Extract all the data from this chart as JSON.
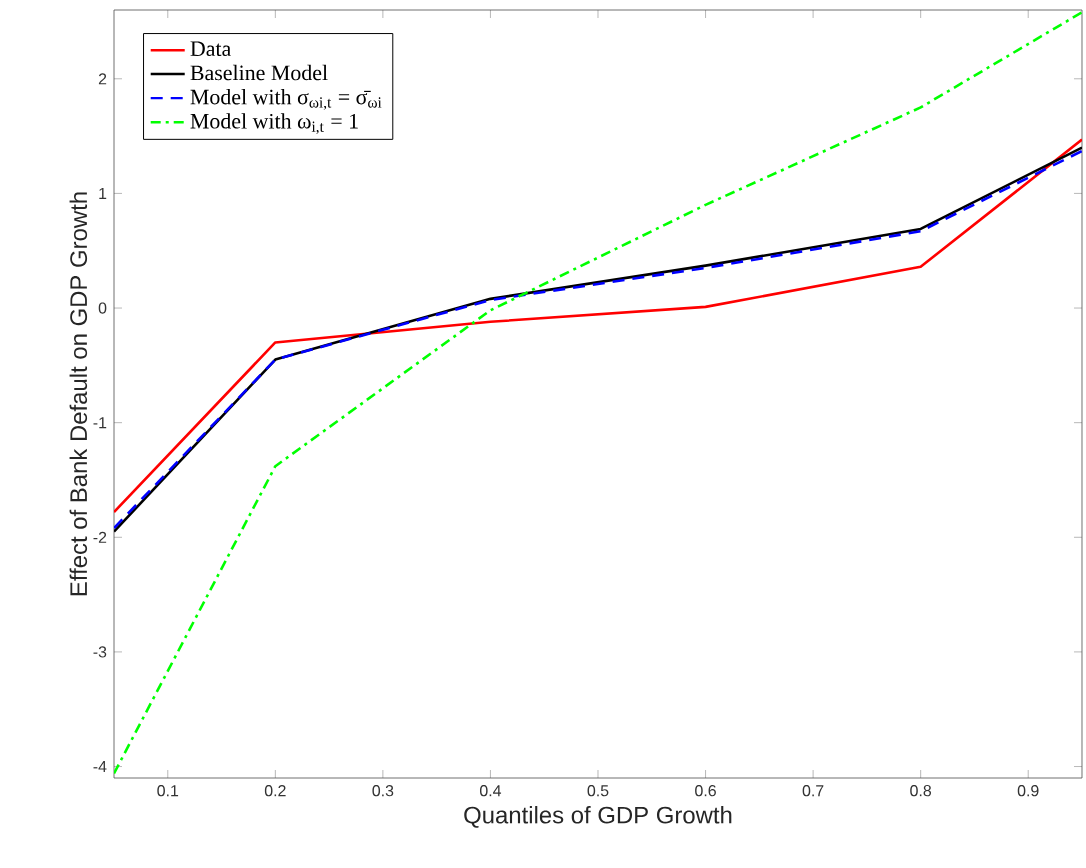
{
  "chart_data": {
    "type": "line",
    "xlabel": "Quantiles of GDP Growth",
    "ylabel": "Effect of Bank Default on GDP Growth",
    "x": [
      0.05,
      0.2,
      0.4,
      0.6,
      0.8,
      0.95
    ],
    "series": [
      {
        "name": "Data",
        "color": "#ff0000",
        "line_style": "solid",
        "values": [
          -1.78,
          -0.3,
          -0.12,
          0.01,
          0.36,
          1.47
        ]
      },
      {
        "name": "Baseline Model",
        "color": "#000000",
        "line_style": "solid",
        "values": [
          -1.95,
          -0.45,
          0.08,
          0.37,
          0.69,
          1.4
        ]
      },
      {
        "name": "Model with σ$_{ωi,t}$ = σ̄$_{ωi}$",
        "color": "#0000ff",
        "line_style": "dashed",
        "values": [
          -1.92,
          -0.45,
          0.07,
          0.35,
          0.67,
          1.37
        ]
      },
      {
        "name": "Model with ω$_{i,t}$ = 1",
        "color": "#00ff00",
        "line_style": "dashdot",
        "values": [
          -4.06,
          -1.38,
          -0.02,
          0.9,
          1.75,
          2.58
        ]
      }
    ],
    "xlim": [
      0.05,
      0.95
    ],
    "ylim": [
      -4.1,
      2.6
    ],
    "xticks": [
      0.1,
      0.2,
      0.3,
      0.4,
      0.5,
      0.6,
      0.7,
      0.8,
      0.9
    ],
    "yticks": [
      -4,
      -3,
      -2,
      -1,
      0,
      1,
      2
    ],
    "grid": false,
    "legend": "top left",
    "marker": "none"
  }
}
